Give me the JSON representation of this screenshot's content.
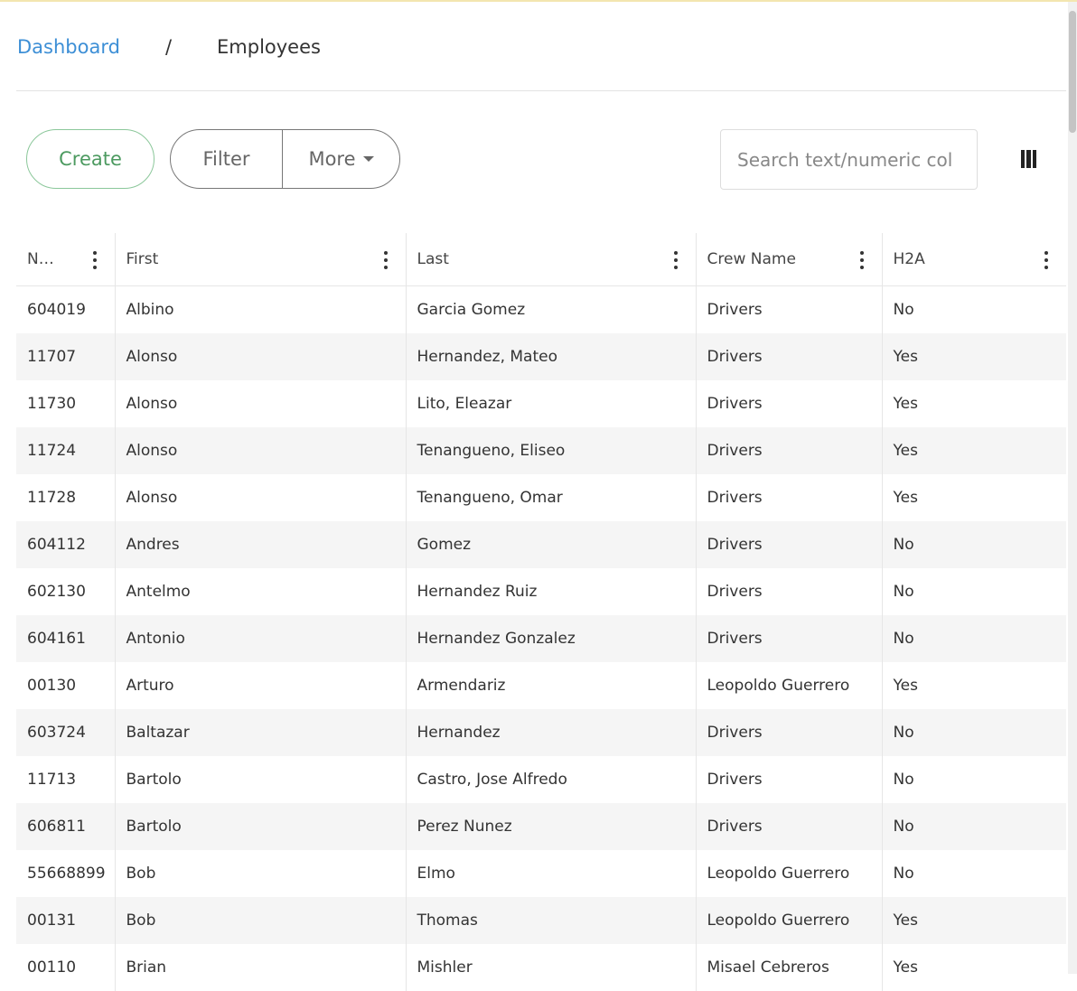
{
  "breadcrumb": {
    "parent": "Dashboard",
    "separator": "/",
    "current": "Employees"
  },
  "toolbar": {
    "create": "Create",
    "filter": "Filter",
    "more": "More",
    "search_placeholder": "Search text/numeric col"
  },
  "table": {
    "columns": [
      "N…",
      "First",
      "Last",
      "Crew Name",
      "H2A"
    ],
    "rows": [
      [
        "604019",
        "Albino",
        "Garcia Gomez",
        "Drivers",
        "No"
      ],
      [
        "11707",
        "Alonso",
        "Hernandez, Mateo",
        "Drivers",
        "Yes"
      ],
      [
        "11730",
        "Alonso",
        "Lito, Eleazar",
        "Drivers",
        "Yes"
      ],
      [
        "11724",
        "Alonso",
        "Tenangueno, Eliseo",
        "Drivers",
        "Yes"
      ],
      [
        "11728",
        "Alonso",
        "Tenangueno, Omar",
        "Drivers",
        "Yes"
      ],
      [
        "604112",
        "Andres",
        "Gomez",
        "Drivers",
        "No"
      ],
      [
        "602130",
        "Antelmo",
        "Hernandez Ruiz",
        "Drivers",
        "No"
      ],
      [
        "604161",
        "Antonio",
        "Hernandez Gonzalez",
        "Drivers",
        "No"
      ],
      [
        "00130",
        "Arturo",
        "Armendariz",
        "Leopoldo Guerrero",
        "Yes"
      ],
      [
        "603724",
        "Baltazar",
        "Hernandez",
        "Drivers",
        "No"
      ],
      [
        "11713",
        "Bartolo",
        "Castro, Jose Alfredo",
        "Drivers",
        "No"
      ],
      [
        "606811",
        "Bartolo",
        "Perez Nunez",
        "Drivers",
        "No"
      ],
      [
        "55668899",
        "Bob",
        "Elmo",
        "Leopoldo Guerrero",
        "No"
      ],
      [
        "00131",
        "Bob",
        "Thomas",
        "Leopoldo Guerrero",
        "Yes"
      ],
      [
        "00110",
        "Brian",
        "Mishler",
        "Misael Cebreros",
        "Yes"
      ]
    ]
  }
}
